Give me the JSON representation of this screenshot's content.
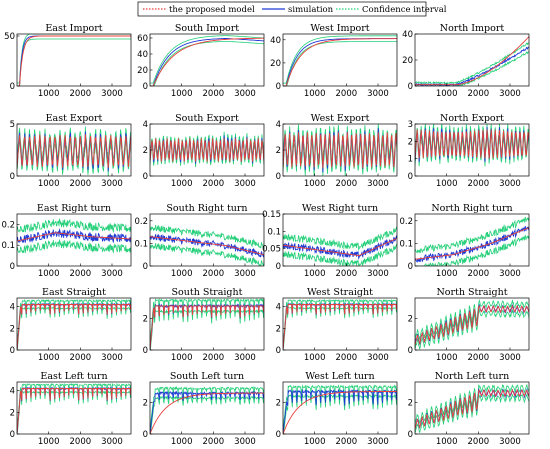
{
  "colors": {
    "model": "#e8413c",
    "simulation": "#1f3bd6",
    "confidence": "#26d07a"
  },
  "legend": {
    "items": [
      {
        "label": "the proposed model",
        "color": "#e8413c",
        "style": "dotted"
      },
      {
        "label": "simulation",
        "color": "#1f3bd6",
        "style": "solid"
      },
      {
        "label": "Confidence interval",
        "color": "#26d07a",
        "style": "dotted"
      }
    ]
  },
  "chart_data": [
    {
      "type": "line",
      "title": "East Import",
      "xlim": [
        0,
        3600
      ],
      "xticks": [
        1000,
        2000,
        3000
      ],
      "ylim": [
        0,
        52
      ],
      "yticks": [
        0,
        50
      ],
      "profile": "rise",
      "params": {
        "start": 0,
        "level": 50,
        "tau": 80,
        "delay": 80
      },
      "series": [
        {
          "name": "the proposed model"
        },
        {
          "name": "simulation"
        },
        {
          "name": "Confidence interval"
        }
      ]
    },
    {
      "type": "line",
      "title": "South Import",
      "xlim": [
        0,
        3600
      ],
      "xticks": [
        1000,
        2000,
        3000
      ],
      "ylim": [
        0,
        65
      ],
      "yticks": [
        0,
        20,
        40,
        60
      ],
      "profile": "rise",
      "params": {
        "start": 0,
        "level": 60,
        "tau": 500,
        "delay": 100
      },
      "series": [
        {
          "name": "the proposed model"
        },
        {
          "name": "simulation"
        },
        {
          "name": "Confidence interval"
        }
      ]
    },
    {
      "type": "line",
      "title": "West Import",
      "xlim": [
        0,
        3600
      ],
      "xticks": [
        1000,
        2000,
        3000
      ],
      "ylim": [
        0,
        45
      ],
      "yticks": [
        0,
        20,
        40
      ],
      "profile": "rise",
      "params": {
        "start": 0,
        "level": 41,
        "tau": 350,
        "delay": 100
      },
      "series": [
        {
          "name": "the proposed model"
        },
        {
          "name": "simulation"
        },
        {
          "name": "Confidence interval"
        }
      ]
    },
    {
      "type": "line",
      "title": "North Import",
      "xlim": [
        0,
        3600
      ],
      "xticks": [
        1000,
        2000,
        3000
      ],
      "ylim": [
        0,
        40
      ],
      "yticks": [
        0,
        20,
        40
      ],
      "profile": "late",
      "params": {
        "start": 1,
        "end": 38
      },
      "series": [
        {
          "name": "the proposed model"
        },
        {
          "name": "simulation"
        },
        {
          "name": "Confidence interval"
        }
      ]
    },
    {
      "type": "line",
      "title": "East Export",
      "xlim": [
        0,
        3600
      ],
      "xticks": [
        1000,
        2000,
        3000
      ],
      "ylim": [
        0,
        5
      ],
      "yticks": [
        0,
        5
      ],
      "profile": "osc",
      "params": {
        "base": 0.8,
        "amp": 3.2,
        "period": 160
      },
      "series": [
        {
          "name": "the proposed model"
        },
        {
          "name": "simulation"
        },
        {
          "name": "Confidence interval"
        }
      ]
    },
    {
      "type": "line",
      "title": "South Export",
      "xlim": [
        0,
        3600
      ],
      "xticks": [
        1000,
        2000,
        3000
      ],
      "ylim": [
        0,
        4
      ],
      "yticks": [
        0,
        2,
        4
      ],
      "profile": "osc",
      "params": {
        "base": 1.1,
        "amp": 1.8,
        "period": 120
      },
      "series": [
        {
          "name": "the proposed model"
        },
        {
          "name": "simulation"
        },
        {
          "name": "Confidence interval"
        }
      ]
    },
    {
      "type": "line",
      "title": "West Export",
      "xlim": [
        0,
        3600
      ],
      "xticks": [
        1000,
        2000,
        3000
      ],
      "ylim": [
        0,
        4
      ],
      "yticks": [
        0,
        2,
        4
      ],
      "profile": "osc",
      "params": {
        "base": 0.6,
        "amp": 2.8,
        "period": 140
      },
      "series": [
        {
          "name": "the proposed model"
        },
        {
          "name": "simulation"
        },
        {
          "name": "Confidence interval"
        }
      ]
    },
    {
      "type": "line",
      "title": "North Export",
      "xlim": [
        0,
        3600
      ],
      "xticks": [
        1000,
        2000,
        3000
      ],
      "ylim": [
        0,
        3
      ],
      "yticks": [
        0,
        1,
        2,
        3
      ],
      "profile": "osc",
      "params": {
        "base": 1.0,
        "amp": 1.7,
        "period": 130
      },
      "series": [
        {
          "name": "the proposed model"
        },
        {
          "name": "simulation"
        },
        {
          "name": "Confidence interval"
        }
      ]
    },
    {
      "type": "line",
      "title": "East Right turn",
      "xlim": [
        0,
        3600
      ],
      "xticks": [
        1000,
        2000,
        3000
      ],
      "ylim": [
        0,
        0.25
      ],
      "yticks": [
        0,
        0.1,
        0.2
      ],
      "profile": "noisy",
      "params": {
        "mid": [
          0.12,
          0.16,
          0.14,
          0.13
        ],
        "noise": 0.02,
        "band": 0.05
      },
      "series": [
        {
          "name": "the proposed model"
        },
        {
          "name": "simulation"
        },
        {
          "name": "Confidence interval"
        }
      ]
    },
    {
      "type": "line",
      "title": "South Right turn",
      "xlim": [
        0,
        3600
      ],
      "xticks": [
        1000,
        2000,
        3000
      ],
      "ylim": [
        0,
        0.23
      ],
      "yticks": [
        0,
        0.1,
        0.2
      ],
      "profile": "noisy",
      "params": {
        "mid": [
          0.13,
          0.11,
          0.09,
          0.05
        ],
        "noise": 0.015,
        "band": 0.04
      },
      "series": [
        {
          "name": "the proposed model"
        },
        {
          "name": "simulation"
        },
        {
          "name": "Confidence interval"
        }
      ]
    },
    {
      "type": "line",
      "title": "West Right turn",
      "xlim": [
        0,
        3600
      ],
      "xticks": [
        1000,
        2000,
        3000
      ],
      "ylim": [
        0,
        0.15
      ],
      "yticks": [
        0,
        0.05,
        0.1,
        0.15
      ],
      "profile": "noisy",
      "params": {
        "mid": [
          0.06,
          0.045,
          0.03,
          0.08
        ],
        "noise": 0.01,
        "band": 0.025
      },
      "series": [
        {
          "name": "the proposed model"
        },
        {
          "name": "simulation"
        },
        {
          "name": "Confidence interval"
        }
      ]
    },
    {
      "type": "line",
      "title": "North Right turn",
      "xlim": [
        0,
        3600
      ],
      "xticks": [
        1000,
        2000,
        3000
      ],
      "ylim": [
        0,
        0.23
      ],
      "yticks": [
        0,
        0.1,
        0.2
      ],
      "profile": "noisy",
      "params": {
        "mid": [
          0.03,
          0.05,
          0.1,
          0.17
        ],
        "noise": 0.015,
        "band": 0.04
      },
      "series": [
        {
          "name": "the proposed model"
        },
        {
          "name": "simulation"
        },
        {
          "name": "Confidence interval"
        }
      ]
    },
    {
      "type": "line",
      "title": "East Straight",
      "xlim": [
        0,
        3600
      ],
      "xticks": [
        1000,
        2000,
        3000
      ],
      "ylim": [
        0,
        4.8
      ],
      "yticks": [
        0,
        2,
        4
      ],
      "profile": "sat",
      "params": {
        "level": 4.2,
        "dip": 1.0,
        "period": 150
      },
      "series": [
        {
          "name": "the proposed model"
        },
        {
          "name": "simulation"
        },
        {
          "name": "Confidence interval"
        }
      ]
    },
    {
      "type": "line",
      "title": "South Straight",
      "xlim": [
        0,
        3600
      ],
      "xticks": [
        1000,
        2000,
        3000
      ],
      "ylim": [
        0,
        3.3
      ],
      "yticks": [
        0,
        2
      ],
      "profile": "sat",
      "params": {
        "level": 2.8,
        "dip": 0.8,
        "period": 150
      },
      "series": [
        {
          "name": "the proposed model"
        },
        {
          "name": "simulation"
        },
        {
          "name": "Confidence interval"
        }
      ]
    },
    {
      "type": "line",
      "title": "West Straight",
      "xlim": [
        0,
        3600
      ],
      "xticks": [
        1000,
        2000,
        3000
      ],
      "ylim": [
        0,
        4.8
      ],
      "yticks": [
        0,
        2,
        4
      ],
      "profile": "sat",
      "params": {
        "level": 4.2,
        "dip": 1.0,
        "period": 150
      },
      "series": [
        {
          "name": "the proposed model"
        },
        {
          "name": "simulation"
        },
        {
          "name": "Confidence interval"
        }
      ]
    },
    {
      "type": "line",
      "title": "North Straight",
      "xlim": [
        0,
        3600
      ],
      "xticks": [
        1000,
        2000,
        3000
      ],
      "ylim": [
        0,
        3.3
      ],
      "yticks": [
        0,
        2
      ],
      "profile": "grow",
      "params": {
        "level": 2.8,
        "period": 150
      },
      "series": [
        {
          "name": "the proposed model"
        },
        {
          "name": "simulation"
        },
        {
          "name": "Confidence interval"
        }
      ]
    },
    {
      "type": "line",
      "title": "East Left turn",
      "xlim": [
        0,
        3600
      ],
      "xticks": [
        1000,
        2000,
        3000
      ],
      "ylim": [
        0,
        4.8
      ],
      "yticks": [
        0,
        2,
        4
      ],
      "profile": "sat",
      "params": {
        "level": 4.2,
        "dip": 1.2,
        "period": 150
      },
      "series": [
        {
          "name": "the proposed model"
        },
        {
          "name": "simulation"
        },
        {
          "name": "Confidence interval"
        }
      ]
    },
    {
      "type": "line",
      "title": "South Left turn",
      "xlim": [
        0,
        3600
      ],
      "xticks": [
        1000,
        2000,
        3000
      ],
      "ylim": [
        0,
        3.3
      ],
      "yticks": [
        0,
        2
      ],
      "profile": "satmodel",
      "params": {
        "level": 2.6,
        "dip": 0.5,
        "period": 150
      },
      "series": [
        {
          "name": "the proposed model"
        },
        {
          "name": "simulation"
        },
        {
          "name": "Confidence interval"
        }
      ]
    },
    {
      "type": "line",
      "title": "West Left turn",
      "xlim": [
        0,
        3600
      ],
      "xticks": [
        1000,
        2000,
        3000
      ],
      "ylim": [
        0,
        3.3
      ],
      "yticks": [
        0,
        2
      ],
      "profile": "satmodel",
      "params": {
        "level": 2.7,
        "dip": 0.9,
        "period": 150
      },
      "series": [
        {
          "name": "the proposed model"
        },
        {
          "name": "simulation"
        },
        {
          "name": "Confidence interval"
        }
      ]
    },
    {
      "type": "line",
      "title": "North Left turn",
      "xlim": [
        0,
        3600
      ],
      "xticks": [
        1000,
        2000,
        3000
      ],
      "ylim": [
        0,
        3.3
      ],
      "yticks": [
        0,
        2
      ],
      "profile": "grow",
      "params": {
        "level": 2.8,
        "period": 150
      },
      "series": [
        {
          "name": "the proposed model"
        },
        {
          "name": "simulation"
        },
        {
          "name": "Confidence interval"
        }
      ]
    }
  ]
}
